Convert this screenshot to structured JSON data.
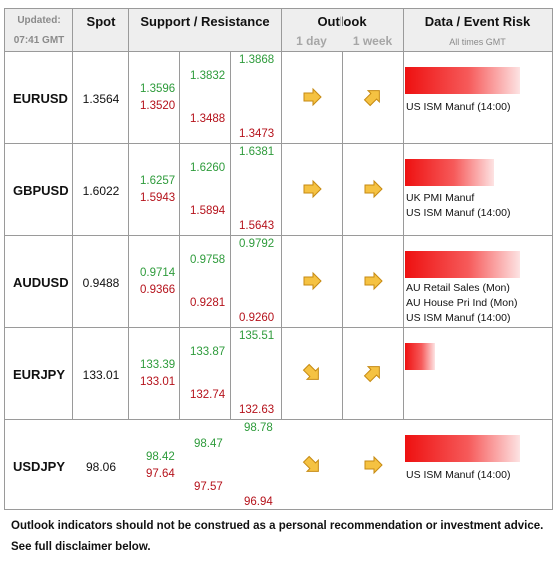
{
  "header": {
    "updated_label": "Updated:",
    "updated_time": "07:41 GMT",
    "spot": "Spot",
    "support_resistance": "Support / Resistance",
    "outlook": "Outlook",
    "outlook_1day": "1 day",
    "outlook_1week": "1 week",
    "data_event_risk": "Data / Event Risk",
    "all_times": "All times GMT"
  },
  "rows": [
    {
      "pair": "EURUSD",
      "spot": "1.3564",
      "s1": "1.3596",
      "s2": "1.3520",
      "s3": "1.3832",
      "s4": "1.3488",
      "s5": "1.3868",
      "s6": "1.3473",
      "outlook_1day": "right",
      "outlook_1week": "up",
      "event_risk_level": 0.93,
      "events": [
        "US ISM Manuf (14:00)"
      ]
    },
    {
      "pair": "GBPUSD",
      "spot": "1.6022",
      "s1": "1.6257",
      "s2": "1.5943",
      "s3": "1.6260",
      "s4": "1.5894",
      "s5": "1.6381",
      "s6": "1.5643",
      "outlook_1day": "right",
      "outlook_1week": "right",
      "event_risk_level": 0.72,
      "events": [
        "UK PMI Manuf",
        "US ISM Manuf (14:00)"
      ]
    },
    {
      "pair": "AUDUSD",
      "spot": "0.9488",
      "s1": "0.9714",
      "s2": "0.9366",
      "s3": "0.9758",
      "s4": "0.9281",
      "s5": "0.9792",
      "s6": "0.9260",
      "outlook_1day": "right",
      "outlook_1week": "right",
      "event_risk_level": 0.93,
      "events": [
        "AU Retail Sales (Mon)",
        "AU House Pri Ind (Mon)",
        "US ISM Manuf (14:00)"
      ]
    },
    {
      "pair": "EURJPY",
      "spot": "133.01",
      "s1": "133.39",
      "s2": "133.01",
      "s3": "133.87",
      "s4": "132.74",
      "s5": "135.51",
      "s6": "132.63",
      "outlook_1day": "down",
      "outlook_1week": "up",
      "event_risk_level": 0.24,
      "events": []
    },
    {
      "pair": "USDJPY",
      "spot": "98.06",
      "s1": "98.42",
      "s2": "97.64",
      "s3": "98.47",
      "s4": "97.57",
      "s5": "98.78",
      "s6": "96.94",
      "outlook_1day": "down",
      "outlook_1week": "right",
      "event_risk_level": 0.93,
      "events": [
        "US ISM Manuf (14:00)"
      ]
    }
  ],
  "footer": {
    "line1": "Outlook indicators should not be construed as a personal recommendation or investment advice.",
    "line2": "See full disclaimer below."
  },
  "colors": {
    "support_green": "#2e9b3b",
    "resistance_red": "#b5121b",
    "arrow_fill": "#f5c242",
    "arrow_stroke": "#c68a12",
    "header_bg": "#eeeeee"
  }
}
